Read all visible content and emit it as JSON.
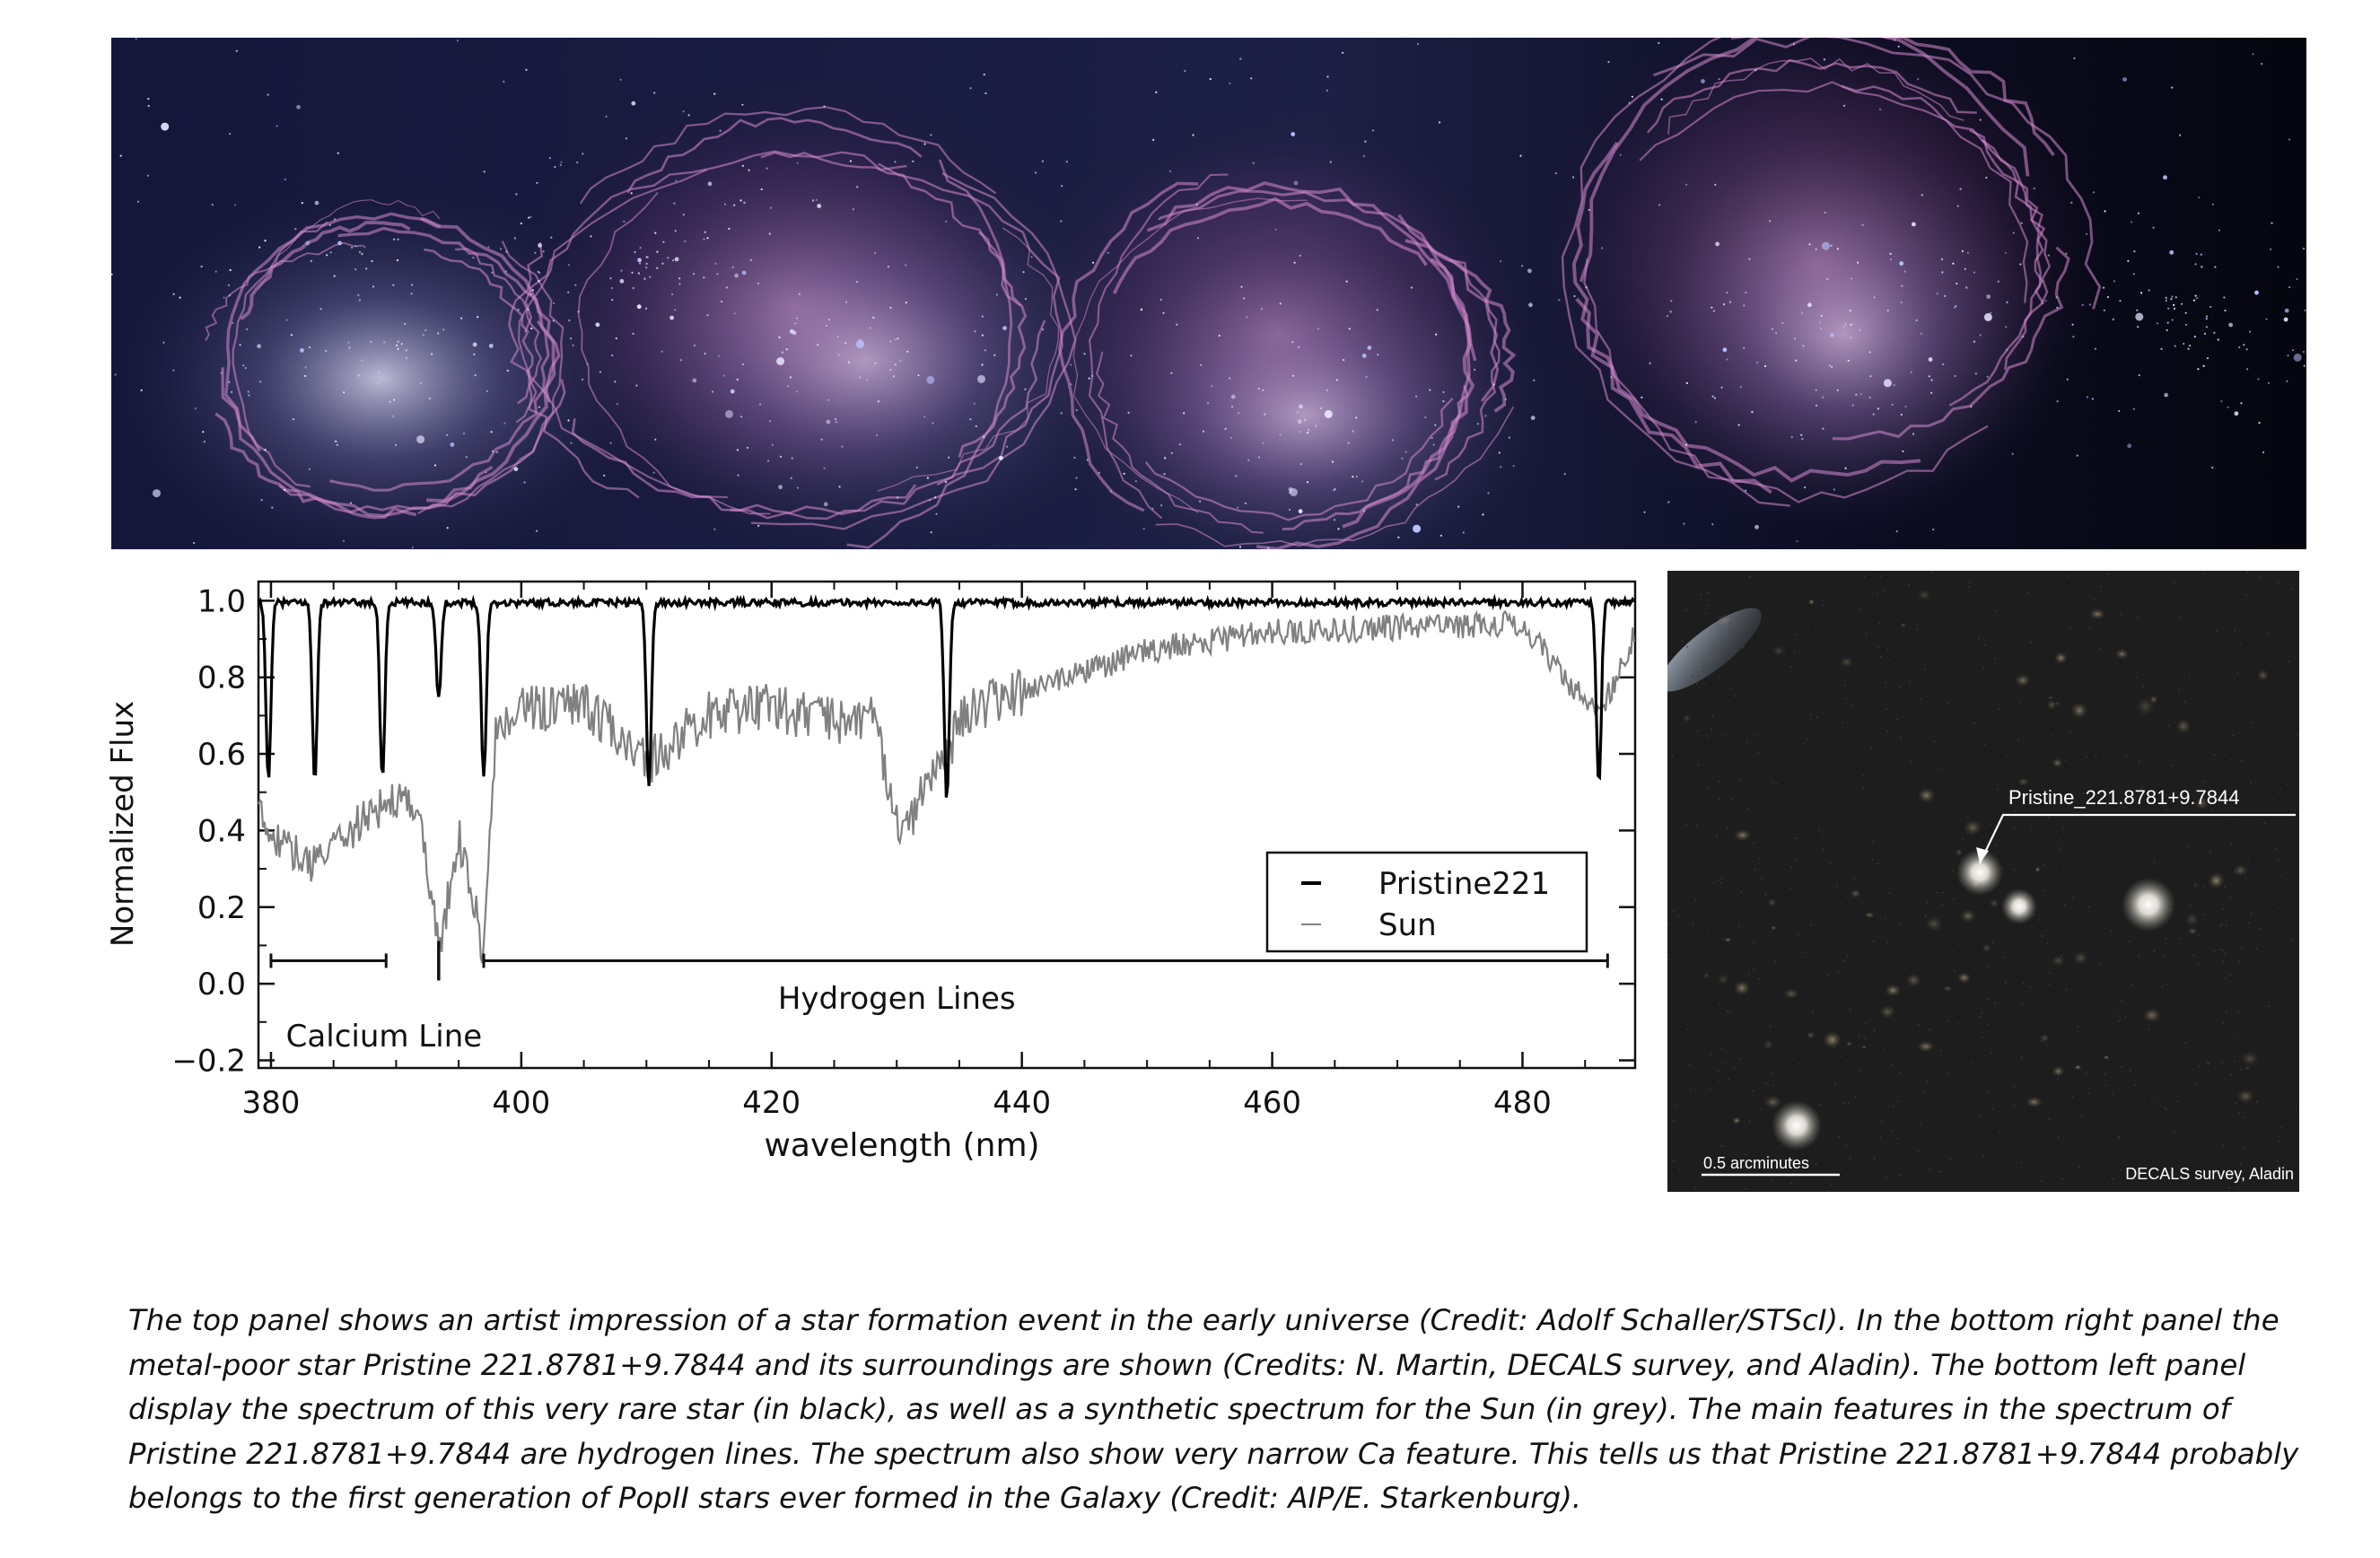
{
  "figure": {
    "artist_panel": {
      "description_icon": "nebula-artwork"
    },
    "spectrum": {
      "chart_data": {
        "type": "line",
        "title": "",
        "xlabel": "wavelength (nm)",
        "ylabel": "Normalized Flux",
        "xlim": [
          379,
          489
        ],
        "ylim": [
          -0.22,
          1.05
        ],
        "xticks": [
          "380",
          "400",
          "420",
          "440",
          "460",
          "480"
        ],
        "yticks": [
          "1.0",
          "0.8",
          "0.6",
          "0.4",
          "0.2",
          "0.0",
          "−0.2"
        ],
        "grid": false,
        "legend_position": "bottom-right",
        "series": [
          {
            "name": "Pristine221",
            "color": "#000000",
            "continuum": 0.995,
            "lines": [
              {
                "center": 379.8,
                "depth": 0.46
              },
              {
                "center": 383.5,
                "depth": 0.46
              },
              {
                "center": 388.9,
                "depth": 0.46
              },
              {
                "center": 393.4,
                "depth": 0.25
              },
              {
                "center": 397.0,
                "depth": 0.46
              },
              {
                "center": 410.2,
                "depth": 0.48
              },
              {
                "center": 434.0,
                "depth": 0.52
              },
              {
                "center": 486.1,
                "depth": 0.48
              }
            ]
          },
          {
            "name": "Sun",
            "color": "#808080",
            "envelope": [
              [
                379.0,
                0.46
              ],
              [
                381.0,
                0.38
              ],
              [
                383.0,
                0.32
              ],
              [
                385.0,
                0.38
              ],
              [
                388.0,
                0.46
              ],
              [
                390.0,
                0.5
              ],
              [
                392.0,
                0.45
              ],
              [
                393.4,
                0.1
              ],
              [
                395.0,
                0.4
              ],
              [
                396.9,
                0.12
              ],
              [
                398.0,
                0.68
              ],
              [
                400.0,
                0.73
              ],
              [
                405.0,
                0.75
              ],
              [
                410.2,
                0.6
              ],
              [
                415.0,
                0.72
              ],
              [
                420.0,
                0.74
              ],
              [
                425.0,
                0.7
              ],
              [
                428.0,
                0.72
              ],
              [
                430.5,
                0.4
              ],
              [
                432.5,
                0.55
              ],
              [
                434.0,
                0.6
              ],
              [
                435.0,
                0.72
              ],
              [
                440.0,
                0.78
              ],
              [
                445.0,
                0.82
              ],
              [
                450.0,
                0.88
              ],
              [
                460.0,
                0.93
              ],
              [
                470.0,
                0.94
              ],
              [
                480.0,
                0.95
              ],
              [
                486.1,
                0.7
              ],
              [
                489.0,
                0.93
              ]
            ]
          }
        ],
        "annotations": [
          {
            "text": "Calcium Line",
            "type": "bracket",
            "x_start": 380,
            "x_end": 389.2,
            "marker_x": 393.4,
            "y": 0.06
          },
          {
            "text": "Hydrogen Lines",
            "type": "bracket",
            "x_start": 397,
            "x_end": 486.8,
            "y": 0.06
          }
        ]
      }
    },
    "sky_panel": {
      "star_label": "Pristine_221.8781+9.7844",
      "scale_label": "0.5 arcminutes",
      "survey_label": "DECALS survey, Aladin",
      "background_color": "#1c1c1c"
    },
    "caption": "The top panel shows an artist impression of a star formation event in the early universe (Credit: Adolf Schaller/STScI). In the bottom right panel the metal-poor star Pristine 221.8781+9.7844 and its surroundings are shown (Credits: N. Martin, DECALS survey, and Aladin). The bottom left panel display the spectrum of  this very rare star (in black), as well as a synthetic spectrum for the Sun (in grey). The main features in the spectrum of Pristine 221.8781+9.7844 are hydrogen lines. The spectrum also show very narrow Ca feature. This tells us that  Pristine 221.8781+9.7844 probably belongs to the first generation of PopII stars ever formed in the Galaxy (Credit: AIP/E. Starkenburg)."
  }
}
